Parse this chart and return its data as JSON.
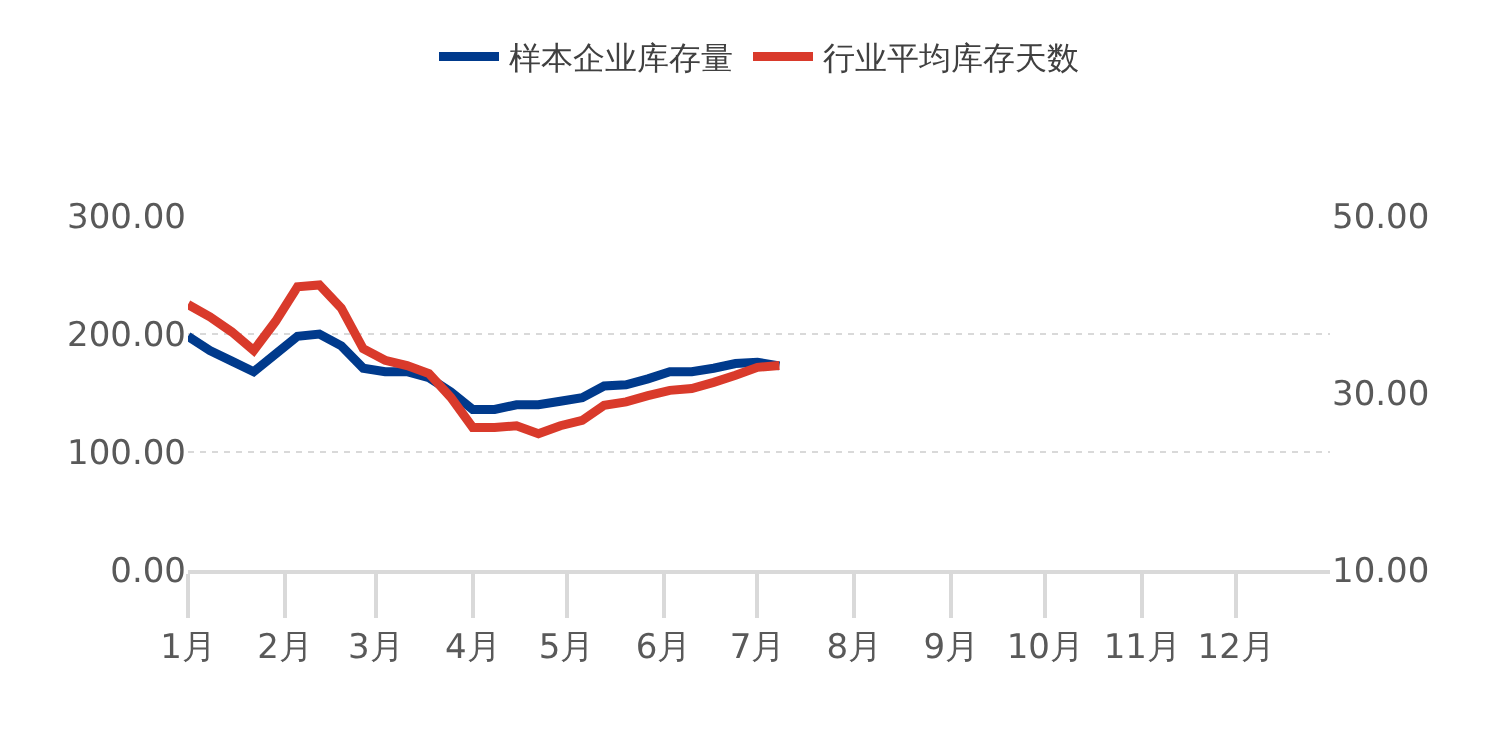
{
  "chart_data": {
    "type": "line",
    "x": [
      "--01-01",
      "--01-08",
      "--01-15",
      "--01-22",
      "--01-29",
      "--02-05",
      "--02-12",
      "--02-19",
      "--02-26",
      "--03-04",
      "--03-11",
      "--03-18",
      "--03-25",
      "--04-01",
      "--04-08",
      "--04-15",
      "--04-22",
      "--04-29",
      "--05-06",
      "--05-13",
      "--05-20",
      "--05-27",
      "--06-03",
      "--06-10",
      "--06-17",
      "--06-24",
      "--07-01",
      "--07-08"
    ],
    "series": [
      {
        "name": "样本企业库存量",
        "color": "#003a8c",
        "values": [
          198,
          186,
          177,
          168,
          183,
          198,
          200,
          190,
          171,
          168,
          168,
          163,
          151,
          136,
          136,
          140,
          140,
          143,
          146,
          156,
          157,
          162,
          168,
          168,
          171,
          175,
          176,
          173
        ]
      },
      {
        "name": "行业平均库存天数",
        "color": "#d93a2b",
        "axis": "y2",
        "values": [
          40.0,
          38.6,
          36.9,
          34.8,
          38.1,
          42.0,
          42.2,
          39.6,
          35.0,
          33.7,
          33.1,
          32.2,
          29.5,
          26.1,
          26.1,
          26.3,
          25.4,
          26.3,
          26.9,
          28.6,
          29.0,
          29.7,
          30.3,
          30.5,
          31.2,
          32.0,
          32.9,
          33.1
        ]
      }
    ],
    "xlim": [
      "--01-01",
      "--12-31"
    ],
    "xticks": [
      {
        "value": "--01-01",
        "label": "1月"
      },
      {
        "value": "--02-01",
        "label": "2月"
      },
      {
        "value": "--03-01",
        "label": "3月"
      },
      {
        "value": "--04-01",
        "label": "4月"
      },
      {
        "value": "--05-01",
        "label": "5月"
      },
      {
        "value": "--06-01",
        "label": "6月"
      },
      {
        "value": "--07-01",
        "label": "7月"
      },
      {
        "value": "--08-01",
        "label": "8月"
      },
      {
        "value": "--09-01",
        "label": "9月"
      },
      {
        "value": "--10-01",
        "label": "10月"
      },
      {
        "value": "--11-01",
        "label": "11月"
      },
      {
        "value": "--12-01",
        "label": "12月"
      }
    ],
    "ylim": [
      0,
      300
    ],
    "yticks": [
      {
        "value": 0,
        "label": "0.00"
      },
      {
        "value": 100,
        "label": "100.00"
      },
      {
        "value": 200,
        "label": "200.00"
      },
      {
        "value": 300,
        "label": "300.00"
      }
    ],
    "y2lim": [
      10,
      50
    ],
    "y2ticks": [
      {
        "value": 10,
        "label": "10.00"
      },
      {
        "value": 30,
        "label": "30.00"
      },
      {
        "value": 50,
        "label": "50.00"
      }
    ],
    "grid": "y",
    "legend": "top",
    "marker": "none",
    "line_style": "solid"
  }
}
